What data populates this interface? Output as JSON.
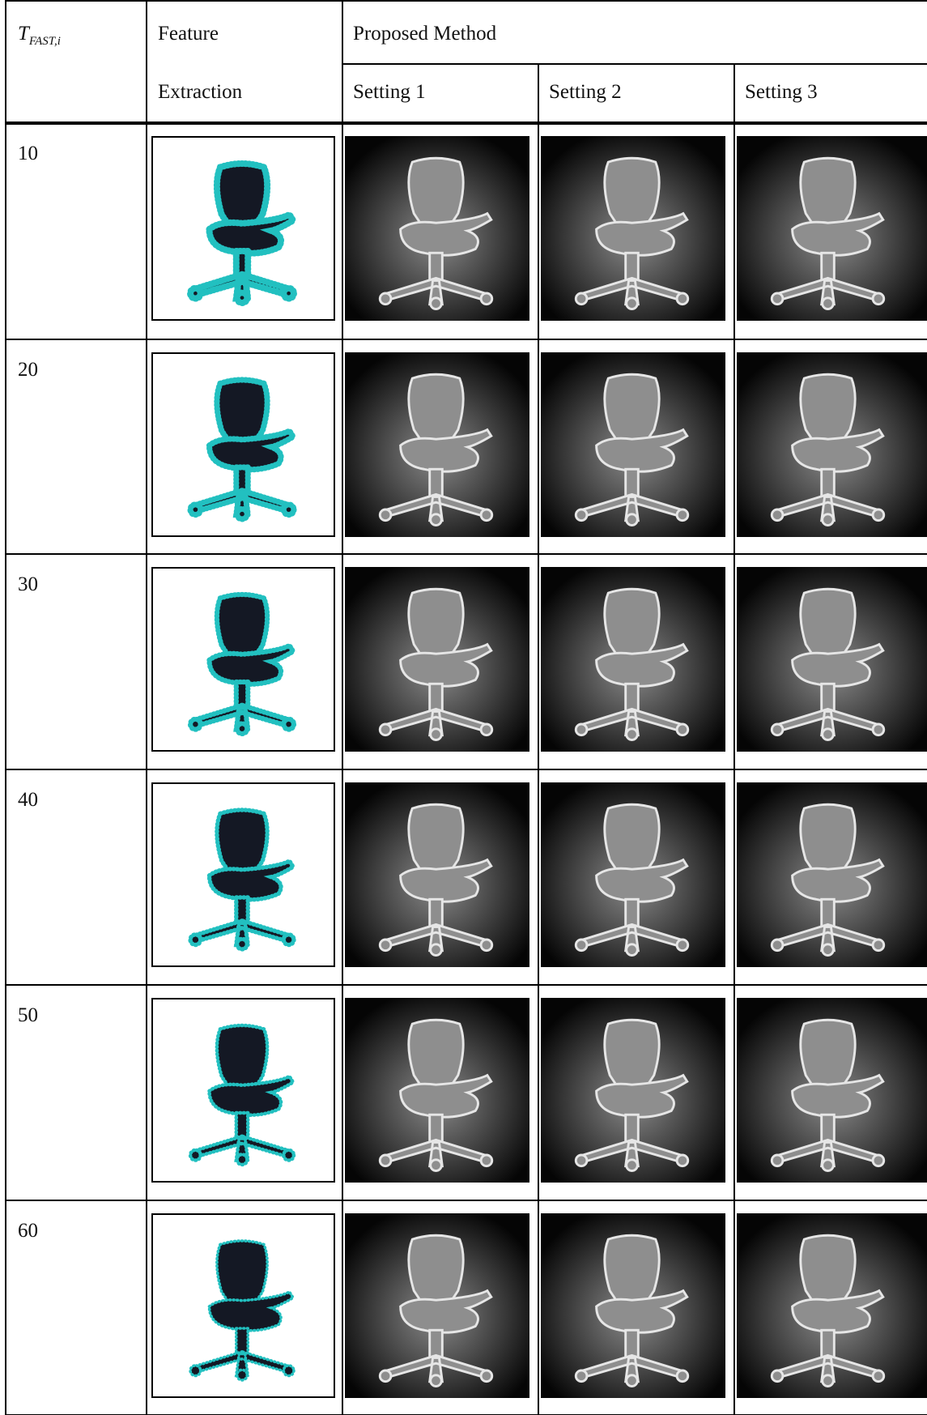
{
  "header": {
    "threshold": {
      "base": "T",
      "subscript": "FAST,i"
    },
    "feature_extraction": [
      "Feature",
      "Extraction"
    ],
    "proposed_method": "Proposed Method",
    "settings": [
      "Setting 1",
      "Setting 2",
      "Setting 3"
    ]
  },
  "rows": [
    {
      "threshold": "10"
    },
    {
      "threshold": "20"
    },
    {
      "threshold": "30"
    },
    {
      "threshold": "40"
    },
    {
      "threshold": "50"
    },
    {
      "threshold": "60"
    }
  ]
}
